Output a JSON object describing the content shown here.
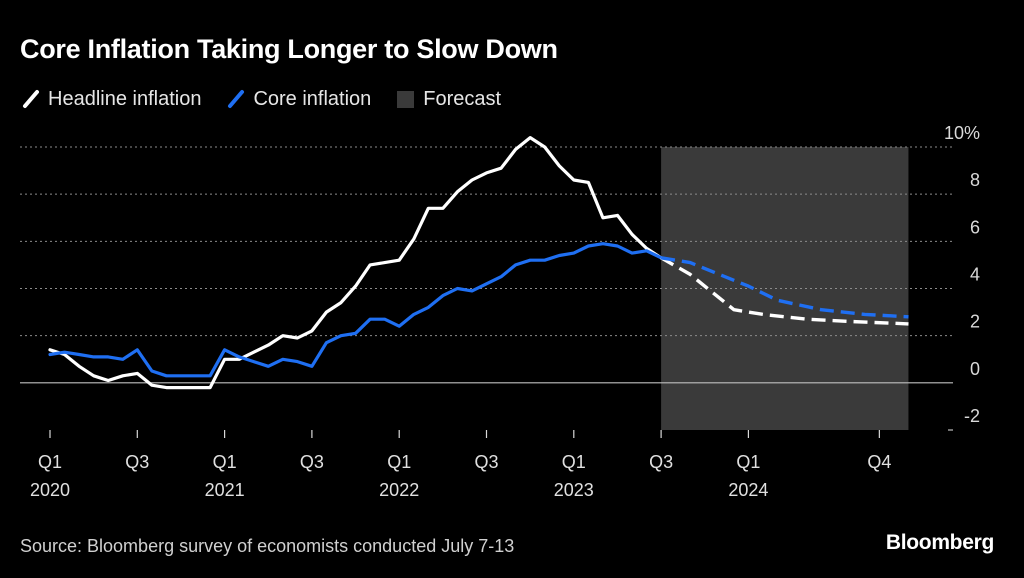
{
  "colors": {
    "background": "#000000",
    "headline": "#ffffff",
    "core": "#1f6ff2",
    "forecast_band": "#3a3a3a",
    "grid": "#8c8c8c"
  },
  "legend": {
    "headline_label": "Headline inflation",
    "core_label": "Core inflation",
    "forecast_label": "Forecast"
  },
  "footer": {
    "source": "Source: Bloomberg survey of economists conducted July 7-13",
    "brand": "Bloomberg"
  },
  "chart_data": {
    "type": "line",
    "title": "Core Inflation Taking Longer to Slow Down",
    "xlabel": "",
    "ylabel": "",
    "ylim": [
      -2,
      10
    ],
    "y_ticks": [
      {
        "value": 10,
        "label": "10%"
      },
      {
        "value": 8,
        "label": "8"
      },
      {
        "value": 6,
        "label": "6"
      },
      {
        "value": 4,
        "label": "4"
      },
      {
        "value": 2,
        "label": "2"
      },
      {
        "value": 0,
        "label": "0"
      },
      {
        "value": -2,
        "label": "-2"
      }
    ],
    "x_range": [
      "2020-01",
      "2024-12"
    ],
    "x_ticks": [
      {
        "month": 0,
        "quarter": "Q1",
        "year": "2020"
      },
      {
        "month": 6,
        "quarter": "Q3",
        "year": ""
      },
      {
        "month": 12,
        "quarter": "Q1",
        "year": "2021"
      },
      {
        "month": 18,
        "quarter": "Q3",
        "year": ""
      },
      {
        "month": 24,
        "quarter": "Q1",
        "year": "2022"
      },
      {
        "month": 30,
        "quarter": "Q3",
        "year": ""
      },
      {
        "month": 36,
        "quarter": "Q1",
        "year": "2023"
      },
      {
        "month": 42,
        "quarter": "Q3",
        "year": ""
      },
      {
        "month": 48,
        "quarter": "Q1",
        "year": "2024"
      },
      {
        "month": 57,
        "quarter": "Q4",
        "year": ""
      }
    ],
    "forecast_start_month": 42,
    "forecast_end_month": 59,
    "grid": true,
    "legend_position": "top-left",
    "series": [
      {
        "name": "Headline inflation",
        "actual_months": [
          0,
          1,
          2,
          3,
          4,
          5,
          6,
          7,
          8,
          9,
          10,
          11,
          12,
          13,
          14,
          15,
          16,
          17,
          18,
          19,
          20,
          21,
          22,
          23,
          24,
          25,
          26,
          27,
          28,
          29,
          30,
          31,
          32,
          33,
          34,
          35,
          36,
          37,
          38,
          39,
          40,
          41,
          42
        ],
        "actual_values": [
          1.4,
          1.2,
          0.7,
          0.3,
          0.1,
          0.3,
          0.4,
          -0.1,
          -0.2,
          -0.2,
          -0.2,
          -0.2,
          1.0,
          1.0,
          1.3,
          1.6,
          2.0,
          1.9,
          2.2,
          3.0,
          3.4,
          4.1,
          5.0,
          5.1,
          5.2,
          6.1,
          7.4,
          7.4,
          8.1,
          8.6,
          8.9,
          9.1,
          9.9,
          10.4,
          10.0,
          9.2,
          8.6,
          8.5,
          7.0,
          7.1,
          6.3,
          5.7,
          5.3
        ],
        "forecast_months": [
          42,
          44,
          47,
          49,
          52,
          55,
          59
        ],
        "forecast_values": [
          5.3,
          4.6,
          3.1,
          2.9,
          2.7,
          2.6,
          2.5
        ]
      },
      {
        "name": "Core inflation",
        "actual_months": [
          0,
          1,
          2,
          3,
          4,
          5,
          6,
          7,
          8,
          9,
          10,
          11,
          12,
          13,
          14,
          15,
          16,
          17,
          18,
          19,
          20,
          21,
          22,
          23,
          24,
          25,
          26,
          27,
          28,
          29,
          30,
          31,
          32,
          33,
          34,
          35,
          36,
          37,
          38,
          39,
          40,
          41,
          42
        ],
        "actual_values": [
          1.2,
          1.3,
          1.2,
          1.1,
          1.1,
          1.0,
          1.4,
          0.5,
          0.3,
          0.3,
          0.3,
          0.3,
          1.4,
          1.1,
          0.9,
          0.7,
          1.0,
          0.9,
          0.7,
          1.7,
          2.0,
          2.1,
          2.7,
          2.7,
          2.4,
          2.9,
          3.2,
          3.7,
          4.0,
          3.9,
          4.2,
          4.5,
          5.0,
          5.2,
          5.2,
          5.4,
          5.5,
          5.8,
          5.9,
          5.8,
          5.5,
          5.6,
          5.3
        ],
        "forecast_months": [
          42,
          44,
          46,
          48,
          50,
          53,
          56,
          59
        ],
        "forecast_values": [
          5.3,
          5.1,
          4.6,
          4.1,
          3.5,
          3.1,
          2.9,
          2.8
        ]
      }
    ]
  }
}
